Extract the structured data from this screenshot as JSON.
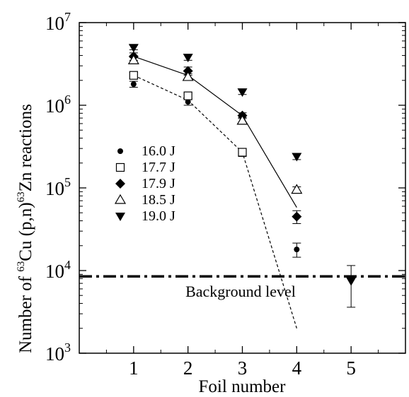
{
  "chart_data": {
    "type": "scatter",
    "xlabel": "Foil number",
    "ylabel": "Number of 63Cu (p,n) 63Zn reactions",
    "ylabel_parts": {
      "prefix": "Number of ",
      "sup1": "63",
      "mid": "Cu (p,n)",
      "sup2": "63",
      "suffix": "Zn reactions"
    },
    "xlim": [
      0,
      6
    ],
    "ylim": [
      1000,
      10000000
    ],
    "yscale": "log",
    "x_ticks": [
      1,
      2,
      3,
      4,
      5
    ],
    "x_tick_labels": [
      "1",
      "2",
      "3",
      "4",
      "5"
    ],
    "y_ticks": [
      1000,
      10000,
      100000,
      1000000,
      10000000
    ],
    "y_tick_labels": [
      {
        "base": "10",
        "exp": "3"
      },
      {
        "base": "10",
        "exp": "4"
      },
      {
        "base": "10",
        "exp": "5"
      },
      {
        "base": "10",
        "exp": "6"
      },
      {
        "base": "10",
        "exp": "7"
      }
    ],
    "legend_position": "left",
    "series": [
      {
        "name": "16.0 J",
        "marker": "circle-filled",
        "x": [
          1,
          2,
          3,
          4
        ],
        "y": [
          1800000,
          1100000,
          270000,
          18000
        ],
        "err": [
          [
            150000,
            150000
          ],
          [
            100000,
            100000
          ],
          [
            30000,
            30000
          ],
          [
            3500,
            3500
          ]
        ]
      },
      {
        "name": "17.7 J",
        "marker": "square-open",
        "x": [
          1,
          2,
          3
        ],
        "y": [
          2300000,
          1300000,
          270000
        ],
        "err": [
          [
            200000,
            200000
          ],
          [
            100000,
            100000
          ],
          [
            30000,
            30000
          ]
        ]
      },
      {
        "name": "17.9 J",
        "marker": "diamond-filled",
        "x": [
          1,
          2,
          3,
          4
        ],
        "y": [
          3900000,
          2600000,
          750000,
          45000
        ],
        "err": [
          [
            400000,
            400000
          ],
          [
            300000,
            300000
          ],
          [
            60000,
            60000
          ],
          [
            8000,
            8000
          ]
        ]
      },
      {
        "name": "18.5 J",
        "marker": "triangle-up-open",
        "x": [
          1,
          2,
          3,
          4
        ],
        "y": [
          3500000,
          2200000,
          650000,
          95000
        ],
        "err": [
          [
            300000,
            300000
          ],
          [
            200000,
            200000
          ],
          [
            60000,
            60000
          ],
          [
            8000,
            8000
          ]
        ]
      },
      {
        "name": "19.0 J",
        "marker": "triangle-down-filled",
        "x": [
          1,
          2,
          3,
          4,
          5
        ],
        "y": [
          5000000,
          3800000,
          1450000,
          240000,
          7500
        ],
        "err": [
          [
            300000,
            300000
          ],
          [
            300000,
            300000
          ],
          [
            100000,
            100000
          ],
          [
            20000,
            20000
          ],
          [
            3900,
            4000
          ]
        ]
      }
    ],
    "fit_lines": [
      {
        "style": "solid",
        "x": [
          1,
          2,
          3,
          4
        ],
        "y": [
          3900000,
          2300000,
          750000,
          58000
        ]
      },
      {
        "style": "dashed",
        "x": [
          1,
          2,
          3,
          4
        ],
        "y": [
          2300000,
          1150000,
          270000,
          2000
        ]
      }
    ],
    "background": {
      "label": "Background level",
      "y": 8500,
      "style": "dash-dot"
    }
  }
}
